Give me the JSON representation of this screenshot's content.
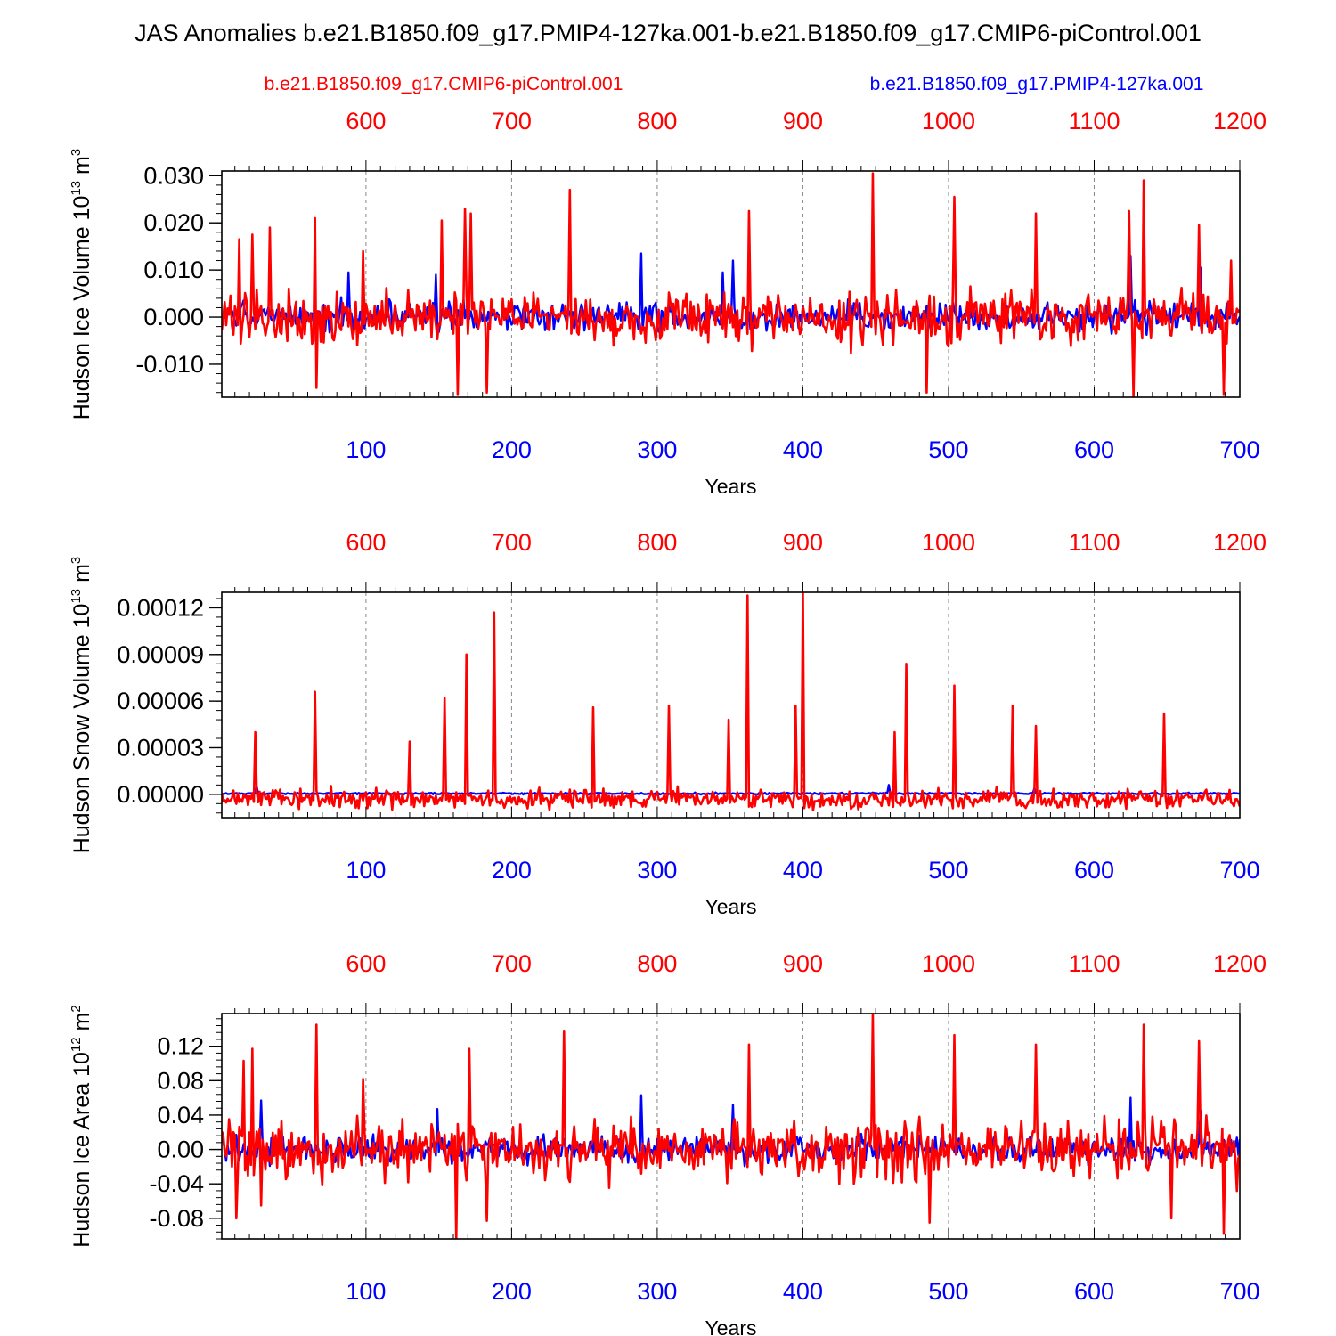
{
  "figure": {
    "title": "JAS Anomalies b.e21.B1850.f09_g17.PMIP4-127ka.001-b.e21.B1850.f09_g17.CMIP6-piControl.001",
    "legend_left": "b.e21.B1850.f09_g17.CMIP6-piControl.001",
    "legend_right": "b.e21.B1850.f09_g17.PMIP4-127ka.001",
    "colors": {
      "red_series": "#ff0000",
      "blue_series": "#0000ff",
      "axes": "#000000",
      "grid": "#888888"
    }
  },
  "chart_data": [
    {
      "type": "line",
      "ylabel": "Hudson Ice Volume 10",
      "ylabel_sup": "13",
      "ylabel_unit": " m",
      "ylabel_unit_sup": "3",
      "xlabel": "Years",
      "ylim": [
        -0.017,
        0.031
      ],
      "yticks": [
        -0.01,
        0.0,
        0.01,
        0.02,
        0.03
      ],
      "ytick_labels": [
        "-0.010",
        "0.000",
        "0.010",
        "0.020",
        "0.030"
      ],
      "yminor": 0.002,
      "xlim_bottom": [
        1,
        700
      ],
      "xticks_bottom": [
        100,
        200,
        300,
        400,
        500,
        600,
        700
      ],
      "xlim_top": [
        501,
        1200
      ],
      "xticks_top": [
        600,
        700,
        800,
        900,
        1000,
        1100,
        1200
      ],
      "series": [
        {
          "name": "b.e21.B1850.f09_g17.PMIP4-127ka.001",
          "color": "#0000ff",
          "generator": {
            "mean": 0.0,
            "amp": 0.0045,
            "spikes": [
              [
                88,
                0.0095
              ],
              [
                148,
                0.009
              ],
              [
                289,
                0.0135
              ],
              [
                345,
                0.0095
              ],
              [
                352,
                0.012
              ],
              [
                625,
                0.013
              ],
              [
                673,
                0.0105
              ]
            ]
          }
        },
        {
          "name": "b.e21.B1850.f09_g17.CMIP6-piControl.001",
          "color": "#ff0000",
          "generator": {
            "mean": 0.0,
            "amp": 0.0085,
            "spikes": [
              [
                13,
                0.0165
              ],
              [
                22,
                0.0175
              ],
              [
                34,
                0.019
              ],
              [
                65,
                0.021
              ],
              [
                98,
                0.014
              ],
              [
                152,
                0.0205
              ],
              [
                168,
                0.023
              ],
              [
                172,
                0.022
              ],
              [
                240,
                0.027
              ],
              [
                363,
                0.0225
              ],
              [
                448,
                0.0305
              ],
              [
                504,
                0.0255
              ],
              [
                560,
                0.022
              ],
              [
                624,
                0.0225
              ],
              [
                634,
                0.029
              ],
              [
                672,
                0.0195
              ],
              [
                694,
                0.012
              ]
            ],
            "dips": [
              [
                66,
                -0.015
              ],
              [
                163,
                -0.0165
              ],
              [
                183,
                -0.016
              ],
              [
                485,
                -0.016
              ],
              [
                627,
                -0.017
              ],
              [
                689,
                -0.0165
              ]
            ]
          }
        }
      ]
    },
    {
      "type": "line",
      "ylabel": "Hudson Snow Volume 10",
      "ylabel_sup": "13",
      "ylabel_unit": " m",
      "ylabel_unit_sup": "3",
      "xlabel": "Years",
      "ylim": [
        -1.5e-05,
        0.00013
      ],
      "yticks": [
        0.0,
        3e-05,
        6e-05,
        9e-05,
        0.00012
      ],
      "ytick_labels": [
        "0.00000",
        "0.00003",
        "0.00006",
        "0.00009",
        "0.00012"
      ],
      "yminor": 6e-06,
      "xlim_bottom": [
        1,
        700
      ],
      "xticks_bottom": [
        100,
        200,
        300,
        400,
        500,
        600,
        700
      ],
      "xlim_top": [
        501,
        1200
      ],
      "xticks_top": [
        600,
        700,
        800,
        900,
        1000,
        1100,
        1200
      ],
      "series": [
        {
          "name": "b.e21.B1850.f09_g17.PMIP4-127ka.001",
          "color": "#0000ff",
          "generator": {
            "mean": 5e-07,
            "amp": 8e-07,
            "spikes": [
              [
                25,
                5e-06
              ],
              [
                459,
                6e-06
              ],
              [
                559,
                4e-06
              ]
            ]
          }
        },
        {
          "name": "b.e21.B1850.f09_g17.CMIP6-piControl.001",
          "color": "#ff0000",
          "generator": {
            "mean": -3e-06,
            "amp": 9e-06,
            "spikes": [
              [
                24,
                4e-05
              ],
              [
                65,
                6.6e-05
              ],
              [
                130,
                3.4e-05
              ],
              [
                154,
                6.2e-05
              ],
              [
                169,
                9e-05
              ],
              [
                188,
                0.000117
              ],
              [
                256,
                5.6e-05
              ],
              [
                308,
                5.7e-05
              ],
              [
                349,
                4.8e-05
              ],
              [
                362,
                0.000128
              ],
              [
                395,
                5.7e-05
              ],
              [
                400,
                0.00013
              ],
              [
                463,
                4e-05
              ],
              [
                471,
                8.4e-05
              ],
              [
                504,
                7e-05
              ],
              [
                544,
                5.7e-05
              ],
              [
                560,
                4.4e-05
              ],
              [
                648,
                5.2e-05
              ]
            ]
          }
        }
      ]
    },
    {
      "type": "line",
      "ylabel": "Hudson Ice Area 10",
      "ylabel_sup": "12",
      "ylabel_unit": " m",
      "ylabel_unit_sup": "2",
      "xlabel": "Years",
      "ylim": [
        -0.104,
        0.158
      ],
      "yticks": [
        -0.08,
        -0.04,
        0.0,
        0.04,
        0.08,
        0.12
      ],
      "ytick_labels": [
        "-0.08",
        "-0.04",
        "0.00",
        "0.04",
        "0.08",
        "0.12"
      ],
      "yminor": 0.008,
      "xlim_bottom": [
        1,
        700
      ],
      "xticks_bottom": [
        100,
        200,
        300,
        400,
        500,
        600,
        700
      ],
      "xlim_top": [
        501,
        1200
      ],
      "xticks_top": [
        600,
        700,
        800,
        900,
        1000,
        1100,
        1200
      ],
      "series": [
        {
          "name": "b.e21.B1850.f09_g17.PMIP4-127ka.001",
          "color": "#0000ff",
          "generator": {
            "mean": 0.0,
            "amp": 0.022,
            "spikes": [
              [
                28,
                0.057
              ],
              [
                149,
                0.047
              ],
              [
                289,
                0.063
              ],
              [
                352,
                0.052
              ],
              [
                625,
                0.06
              ],
              [
                673,
                0.045
              ]
            ]
          }
        },
        {
          "name": "b.e21.B1850.f09_g17.CMIP6-piControl.001",
          "color": "#ff0000",
          "generator": {
            "mean": 0.0,
            "amp": 0.05,
            "spikes": [
              [
                16,
                0.103
              ],
              [
                22,
                0.117
              ],
              [
                66,
                0.145
              ],
              [
                98,
                0.082
              ],
              [
                171,
                0.117
              ],
              [
                236,
                0.138
              ],
              [
                363,
                0.122
              ],
              [
                448,
                0.158
              ],
              [
                504,
                0.133
              ],
              [
                560,
                0.122
              ],
              [
                634,
                0.145
              ],
              [
                672,
                0.126
              ]
            ],
            "dips": [
              [
                11,
                -0.08
              ],
              [
                28,
                -0.065
              ],
              [
                162,
                -0.104
              ],
              [
                183,
                -0.083
              ],
              [
                487,
                -0.085
              ],
              [
                653,
                -0.08
              ],
              [
                689,
                -0.098
              ]
            ]
          }
        }
      ]
    }
  ]
}
